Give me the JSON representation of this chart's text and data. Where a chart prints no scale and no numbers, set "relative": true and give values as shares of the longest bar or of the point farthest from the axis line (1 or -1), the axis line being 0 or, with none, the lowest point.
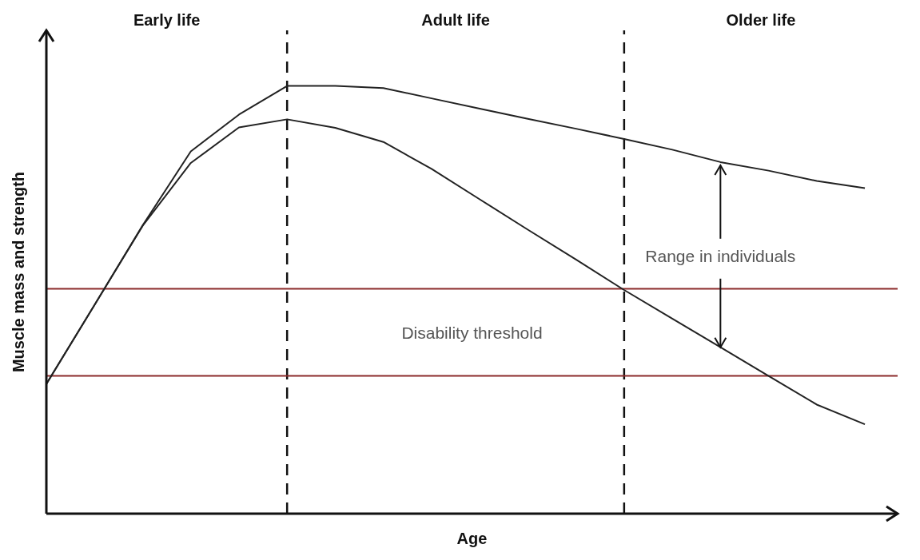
{
  "chart_data": {
    "type": "line",
    "relative": true,
    "xlabel": "Age",
    "ylabel": "Muscle mass and strength",
    "categories": [
      null,
      null,
      null,
      null,
      null,
      null,
      null,
      null,
      null,
      null,
      null,
      null,
      null,
      null,
      null,
      null,
      null,
      null
    ],
    "series": [
      {
        "color": "#222222",
        "values": [
          0.303,
          0.488,
          0.674,
          0.847,
          0.933,
          1.0,
          1.0,
          0.995,
          0.971,
          0.947,
          0.923,
          0.9,
          0.876,
          0.851,
          0.822,
          0.802,
          0.778,
          0.761
        ]
      },
      {
        "color": "#222222",
        "values": [
          0.303,
          0.488,
          0.673,
          0.82,
          0.903,
          0.922,
          0.902,
          0.869,
          0.806,
          0.735,
          0.664,
          0.594,
          0.523,
          0.456,
          0.389,
          0.322,
          0.255,
          0.209
        ]
      }
    ],
    "ref_lines": [
      {
        "axis": "y",
        "value": 0.526,
        "label": "Disability threshold",
        "color": "#8b2a2a",
        "line_style": "solid"
      },
      {
        "axis": "y",
        "value": 0.322,
        "color": "#8b2a2a",
        "line_style": "solid"
      }
    ],
    "annotations": [
      "Early life",
      "Adult life",
      "Older life",
      "Range in individuals"
    ]
  }
}
